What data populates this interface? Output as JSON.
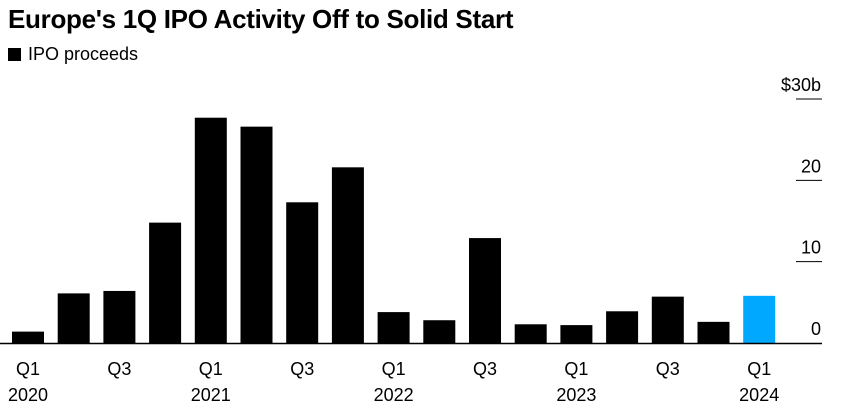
{
  "title": "Europe's 1Q IPO Activity Off to Solid Start",
  "legend": {
    "label": "IPO proceeds"
  },
  "colors": {
    "bar": "#000000",
    "highlight": "#00a8ff",
    "axis": "#000000"
  },
  "chart_data": {
    "type": "bar",
    "title": "Europe's 1Q IPO Activity Off to Solid Start",
    "xlabel": "",
    "ylabel": "",
    "ylim": [
      0,
      30
    ],
    "grid": false,
    "legend_position": "top-left",
    "categories": [
      "Q1 2020",
      "Q2 2020",
      "Q3 2020",
      "Q4 2020",
      "Q1 2021",
      "Q2 2021",
      "Q3 2021",
      "Q4 2021",
      "Q1 2022",
      "Q2 2022",
      "Q3 2022",
      "Q4 2022",
      "Q1 2023",
      "Q2 2023",
      "Q3 2023",
      "Q4 2023",
      "Q1 2024"
    ],
    "series": [
      {
        "name": "IPO proceeds",
        "values": [
          1.4,
          6.1,
          6.4,
          14.8,
          27.7,
          26.6,
          17.3,
          21.6,
          3.8,
          2.8,
          12.9,
          2.3,
          2.2,
          3.9,
          5.7,
          2.6,
          5.8
        ]
      }
    ],
    "highlight_index": 16,
    "y_ticks": [
      {
        "value": 0,
        "label": "0"
      },
      {
        "value": 10,
        "label": "10"
      },
      {
        "value": 20,
        "label": "20"
      },
      {
        "value": 30,
        "label": "$30b"
      }
    ],
    "x_tick_labels": [
      {
        "index": 0,
        "quarter": "Q1",
        "year": "2020"
      },
      {
        "index": 2,
        "quarter": "Q3",
        "year": ""
      },
      {
        "index": 4,
        "quarter": "Q1",
        "year": "2021"
      },
      {
        "index": 6,
        "quarter": "Q3",
        "year": ""
      },
      {
        "index": 8,
        "quarter": "Q1",
        "year": "2022"
      },
      {
        "index": 10,
        "quarter": "Q3",
        "year": ""
      },
      {
        "index": 12,
        "quarter": "Q1",
        "year": "2023"
      },
      {
        "index": 14,
        "quarter": "Q3",
        "year": ""
      },
      {
        "index": 16,
        "quarter": "Q1",
        "year": "2024"
      }
    ]
  }
}
